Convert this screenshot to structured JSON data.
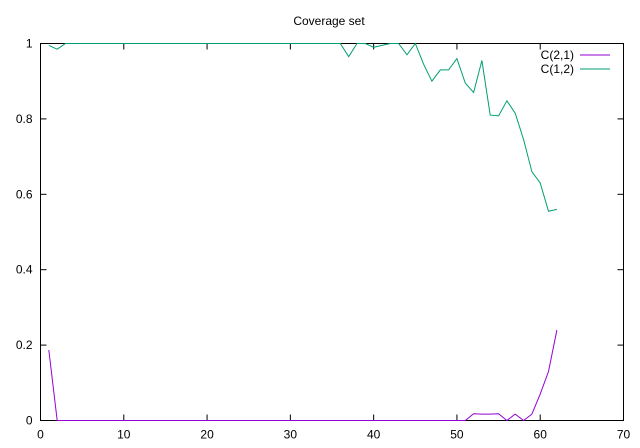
{
  "chart_data": {
    "type": "line",
    "title": "Coverage set",
    "xlabel": "",
    "ylabel": "",
    "xlim": [
      0,
      70
    ],
    "ylim": [
      0,
      1
    ],
    "xticks": [
      0,
      10,
      20,
      30,
      40,
      50,
      60,
      70
    ],
    "yticks": [
      0,
      0.2,
      0.4,
      0.6,
      0.8,
      1
    ],
    "ytick_labels": [
      "0",
      "0.2",
      "0.4",
      "0.6",
      "0.8",
      "1"
    ],
    "grid": false,
    "legend_position": "top-right",
    "series": [
      {
        "name": "C(2,1)",
        "color": "#9400d3",
        "x": [
          1,
          2,
          3,
          10,
          20,
          30,
          40,
          50,
          51,
          52,
          53,
          54,
          55,
          56,
          57,
          58,
          59,
          60,
          61,
          62
        ],
        "y": [
          0.187,
          0,
          0,
          0,
          0,
          0,
          0,
          0,
          0,
          0.018,
          0.017,
          0.017,
          0.018,
          0,
          0.017,
          0,
          0.017,
          0.07,
          0.13,
          0.24
        ]
      },
      {
        "name": "C(1,2)",
        "color": "#009e73",
        "x": [
          1,
          2,
          3,
          10,
          20,
          30,
          36,
          37,
          38,
          39,
          40,
          41,
          42,
          43,
          44,
          45,
          46,
          47,
          48,
          49,
          50,
          51,
          52,
          53,
          54,
          55,
          56,
          57,
          58,
          59,
          60,
          61,
          62
        ],
        "y": [
          0.995,
          0.985,
          1,
          1,
          1,
          1,
          1,
          0.965,
          1,
          1,
          0.99,
          0.995,
          1,
          1,
          0.97,
          1,
          0.945,
          0.9,
          0.93,
          0.93,
          0.96,
          0.895,
          0.87,
          0.955,
          0.81,
          0.808,
          0.848,
          0.815,
          0.745,
          0.66,
          0.63,
          0.555,
          0.56
        ]
      }
    ]
  }
}
